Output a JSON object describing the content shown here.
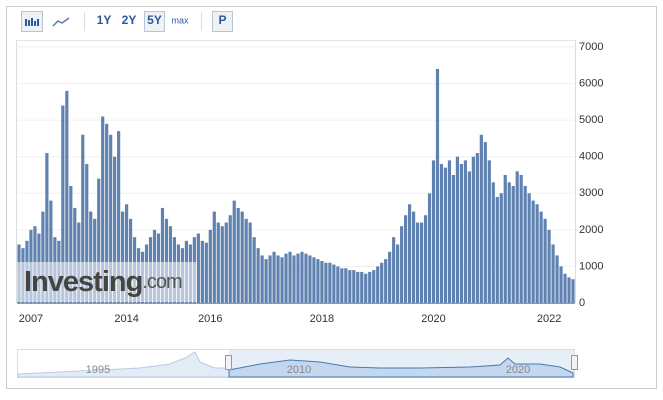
{
  "toolbar": {
    "buttons": [
      "1Y",
      "2Y",
      "5Y",
      "max",
      "P"
    ]
  },
  "watermark": {
    "brand": "Investing",
    "suffix": ".com"
  },
  "navigator": {
    "labels": [
      "1995",
      "2010",
      "2020"
    ]
  },
  "chart_data": {
    "type": "bar",
    "color": "#6082b0",
    "categories": [
      null,
      null,
      null,
      "2007",
      null,
      null,
      null,
      null,
      null,
      null,
      null,
      null,
      null,
      null,
      null,
      null,
      null,
      null,
      null,
      null,
      null,
      null,
      null,
      null,
      null,
      null,
      null,
      "2014",
      null,
      null,
      null,
      null,
      null,
      null,
      null,
      null,
      null,
      null,
      null,
      null,
      null,
      null,
      null,
      null,
      null,
      null,
      null,
      null,
      "2016",
      null,
      null,
      null,
      null,
      null,
      null,
      null,
      null,
      null,
      null,
      null,
      null,
      null,
      null,
      null,
      null,
      null,
      null,
      null,
      null,
      null,
      null,
      null,
      null,
      null,
      null,
      null,
      "2018",
      null,
      null,
      null,
      null,
      null,
      null,
      null,
      null,
      null,
      null,
      null,
      null,
      null,
      null,
      null,
      null,
      null,
      null,
      null,
      null,
      null,
      null,
      null,
      null,
      null,
      null,
      null,
      "2020",
      null,
      null,
      null,
      null,
      null,
      null,
      null,
      null,
      null,
      null,
      null,
      null,
      null,
      null,
      null,
      null,
      null,
      null,
      null,
      null,
      null,
      null,
      null,
      null,
      null,
      null,
      null,
      null,
      "2022",
      null,
      null,
      null,
      null,
      null,
      null
    ],
    "values": [
      1600,
      1500,
      1700,
      2000,
      2100,
      1900,
      2500,
      4100,
      2800,
      1800,
      1700,
      5400,
      5800,
      3200,
      2600,
      2200,
      4600,
      3800,
      2500,
      2300,
      3400,
      5100,
      4900,
      4600,
      4000,
      4700,
      2500,
      2700,
      2300,
      1800,
      1500,
      1400,
      1600,
      1800,
      2000,
      1900,
      2600,
      2300,
      2100,
      1800,
      1600,
      1500,
      1700,
      1600,
      1800,
      1900,
      1700,
      1650,
      2000,
      2500,
      2200,
      2100,
      2200,
      2400,
      2800,
      2600,
      2500,
      2300,
      2200,
      1800,
      1500,
      1300,
      1200,
      1300,
      1400,
      1300,
      1250,
      1350,
      1400,
      1300,
      1350,
      1400,
      1350,
      1300,
      1250,
      1200,
      1150,
      1100,
      1100,
      1050,
      1000,
      950,
      950,
      900,
      900,
      850,
      850,
      800,
      850,
      900,
      1000,
      1100,
      1200,
      1400,
      1800,
      1600,
      2100,
      2400,
      2700,
      2500,
      2200,
      2200,
      2400,
      3000,
      3900,
      6400,
      3800,
      3700,
      3900,
      3500,
      4000,
      3800,
      3900,
      3600,
      4000,
      4100,
      4600,
      4400,
      3900,
      3300,
      2900,
      3000,
      3500,
      3300,
      3200,
      3600,
      3500,
      3200,
      3000,
      2800,
      2700,
      2500,
      2300,
      2000,
      1600,
      1300,
      1000,
      800,
      700,
      650
    ],
    "ylim": [
      0,
      7000
    ],
    "yticks": [
      0,
      1000,
      2000,
      3000,
      4000,
      5000,
      6000,
      7000
    ],
    "grid": true
  }
}
